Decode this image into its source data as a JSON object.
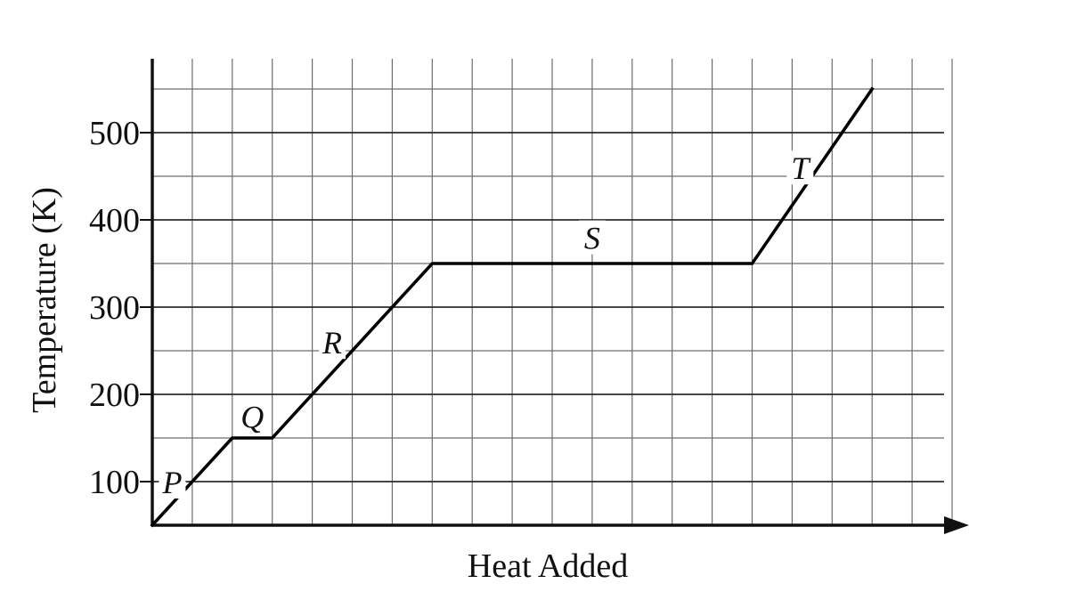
{
  "chart_data": {
    "type": "line",
    "title": "",
    "xlabel": "Heat Added",
    "ylabel": "Temperature (K)",
    "x_ticks_labeled": false,
    "xlim": [
      0,
      20
    ],
    "ylim": [
      50,
      550
    ],
    "y_ticks": [
      100,
      200,
      300,
      400,
      500
    ],
    "grid": true,
    "x_axis_arrow": true,
    "series": [
      {
        "x": [
          0,
          2,
          3,
          7,
          15,
          18
        ],
        "y": [
          50,
          150,
          150,
          350,
          350,
          550
        ]
      }
    ],
    "segment_labels": [
      {
        "text": "P",
        "x": 0.5,
        "y": 100
      },
      {
        "text": "Q",
        "x": 2.5,
        "y": 175
      },
      {
        "text": "R",
        "x": 4.5,
        "y": 260
      },
      {
        "text": "S",
        "x": 11,
        "y": 380
      },
      {
        "text": "T",
        "x": 16.2,
        "y": 460
      }
    ]
  }
}
